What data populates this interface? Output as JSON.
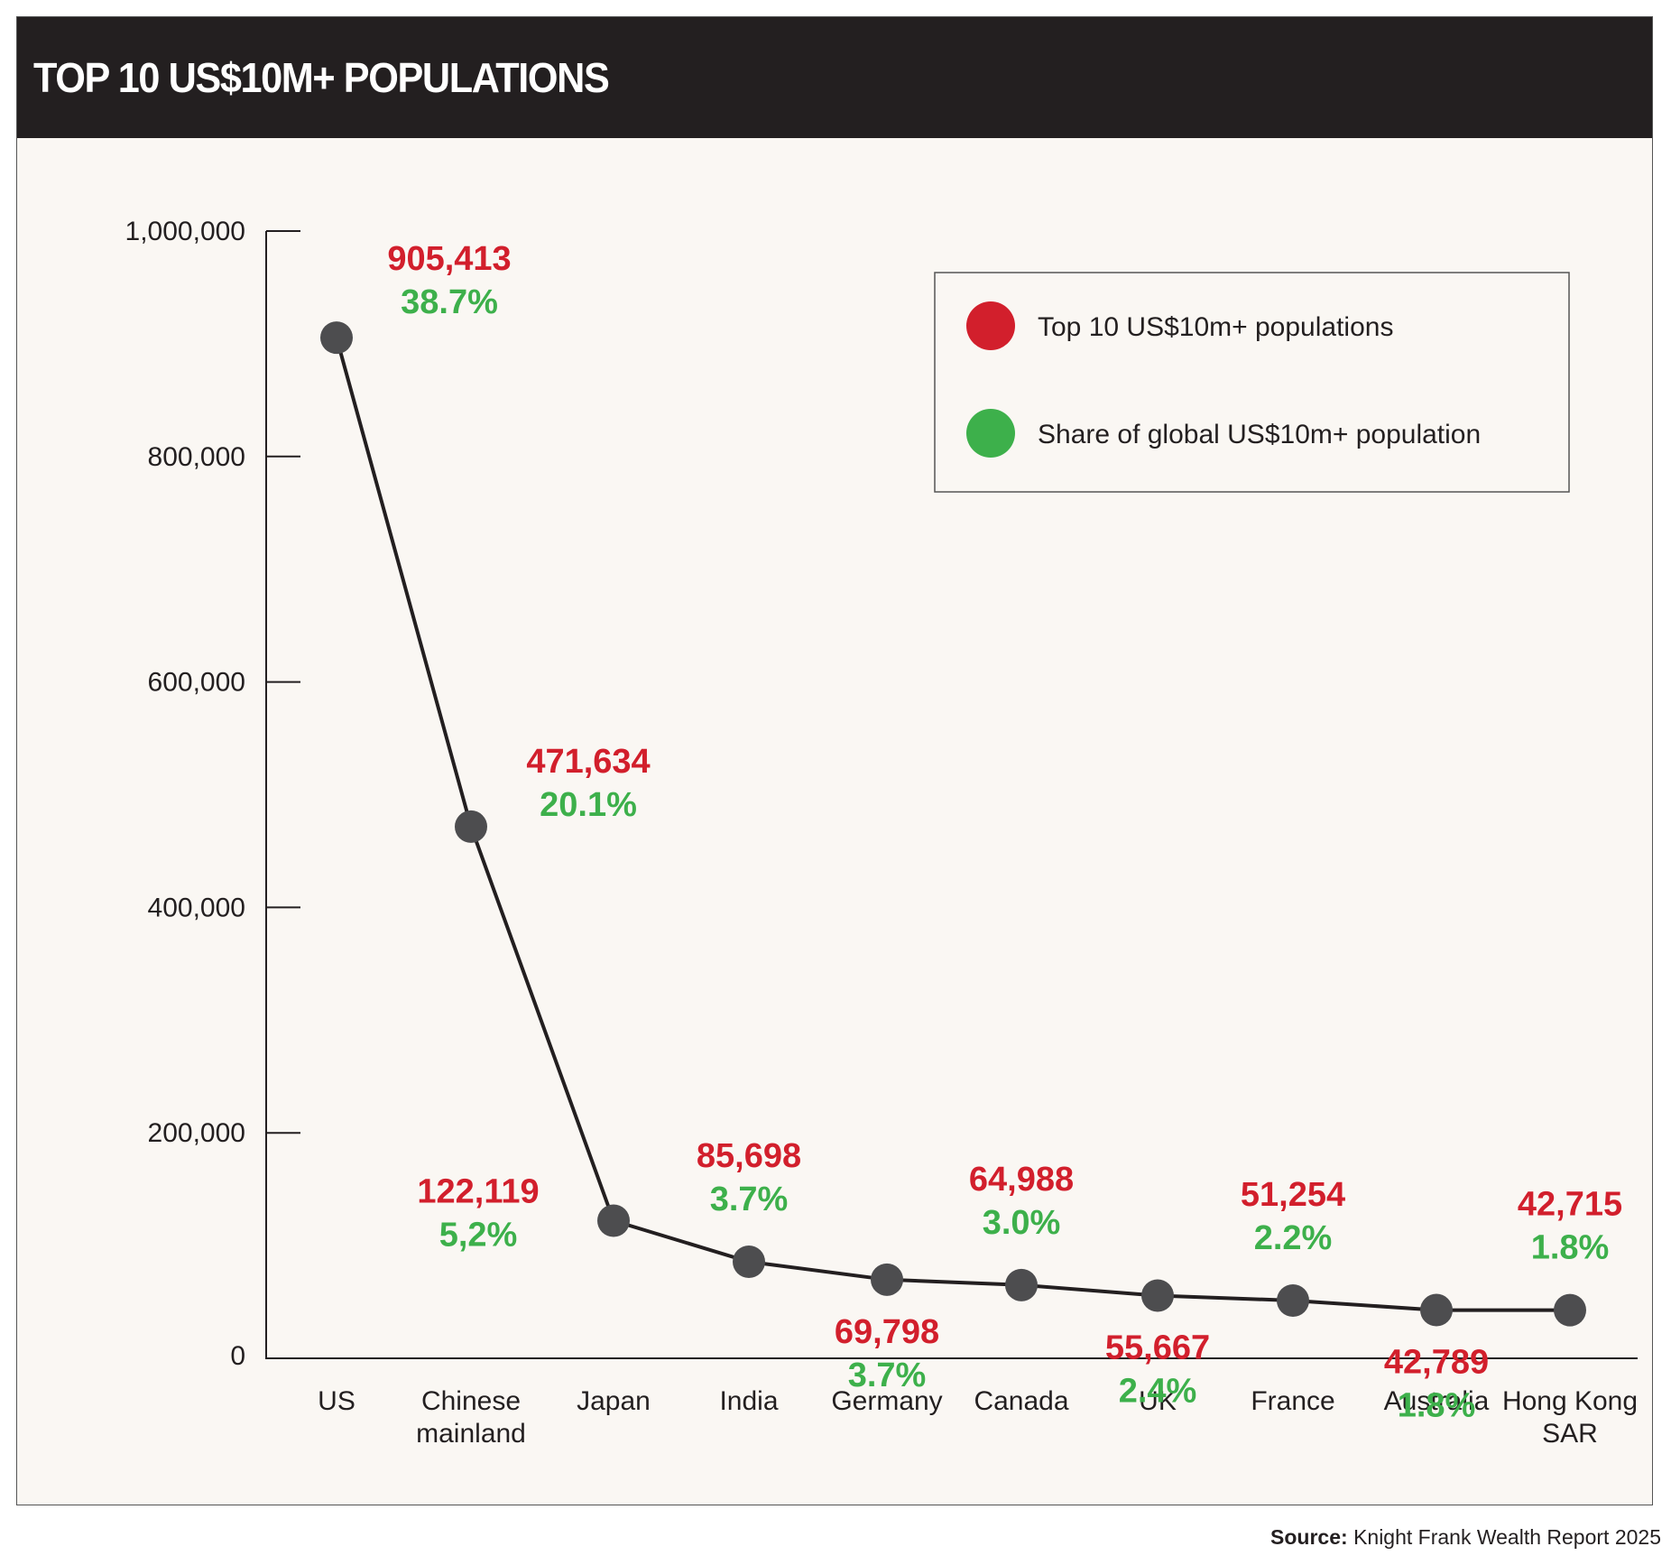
{
  "title": "TOP 10 US$10M+ POPULATIONS",
  "source": {
    "label": "Source:",
    "text": "Knight Frank Wealth Report 2025"
  },
  "colors": {
    "population": "#d21f2c",
    "share": "#3db04b",
    "marker": "#4d4d4f",
    "line": "#231f20",
    "header": "#231f20",
    "background": "#faf7f3"
  },
  "chart_data": {
    "type": "line",
    "title": "TOP 10 US$10M+ POPULATIONS",
    "xlabel": "",
    "ylabel": "",
    "ylim": [
      0,
      1000000
    ],
    "yticks": [
      0,
      200000,
      400000,
      600000,
      800000,
      1000000
    ],
    "ytick_labels": [
      "0",
      "200,000",
      "400,000",
      "600,000",
      "800,000",
      "1,000,000"
    ],
    "grid": false,
    "legend_position": "top-right",
    "categories": [
      [
        "US"
      ],
      [
        "Chinese",
        "mainland"
      ],
      [
        "Japan"
      ],
      [
        "India"
      ],
      [
        "Germany"
      ],
      [
        "Canada"
      ],
      [
        "UK"
      ],
      [
        "France"
      ],
      [
        "Australia"
      ],
      [
        "Hong Kong",
        "SAR"
      ]
    ],
    "series": [
      {
        "name": "Top 10 US$10m+ populations",
        "values": [
          905413,
          471634,
          122119,
          85698,
          69798,
          64988,
          55667,
          51254,
          42789,
          42715
        ],
        "labels": [
          "905,413",
          "471,634",
          "122,119",
          "85,698",
          "69,798",
          "64,988",
          "55,667",
          "51,254",
          "42,789",
          "42,715"
        ]
      },
      {
        "name": "Share of global US$10m+ population",
        "values": [
          38.7,
          20.1,
          5.2,
          3.7,
          3.7,
          3.0,
          2.4,
          2.2,
          1.8,
          1.8
        ],
        "labels": [
          "38.7%",
          "20.1%",
          "5,2%",
          "3.7%",
          "3.7%",
          "3.0%",
          "2.4%",
          "2.2%",
          "1.8%",
          "1.8%"
        ]
      }
    ],
    "label_position": [
      "above",
      "above",
      "above",
      "above",
      "below",
      "above",
      "below",
      "above",
      "below",
      "above"
    ]
  }
}
